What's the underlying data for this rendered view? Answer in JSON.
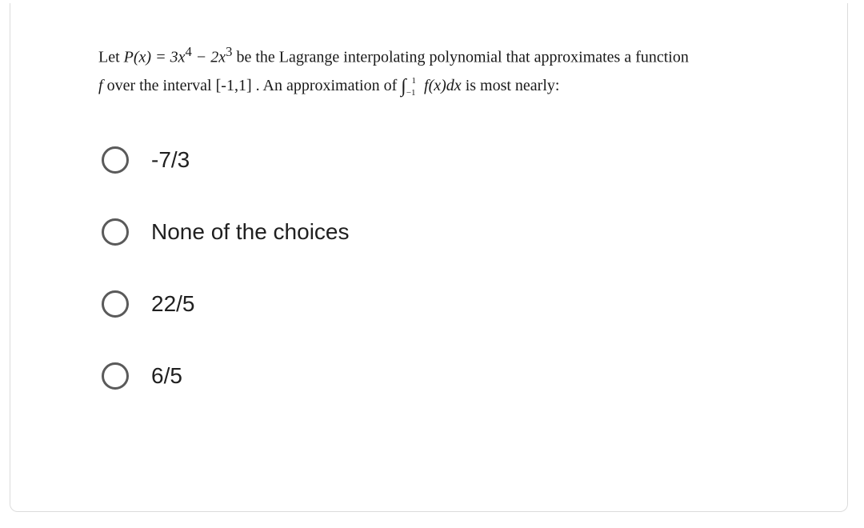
{
  "question": {
    "prefix": "Let ",
    "poly_lhs": "P(x) = 3x",
    "exp4": "4",
    "minus": " − 2x",
    "exp3": "3",
    "mid1": " be the Lagrange interpolating polynomial that approximates a function ",
    "fvar": "f",
    "mid2": " over the interval [-1,1] . An approximation of ",
    "integral_sym": "∫",
    "int_lower": "−1",
    "int_upper": "1",
    "integrand": " f(x)dx",
    "tail": " is most nearly:"
  },
  "options": [
    {
      "label": "-7/3"
    },
    {
      "label": "None of the choices"
    },
    {
      "label": "22/5"
    },
    {
      "label": "6/5"
    }
  ],
  "style": {
    "card_border_color": "#dcdcdc",
    "radio_border_color": "#5a5a5a",
    "option_fontsize": 28,
    "stem_fontsize": 20,
    "text_color": "#202020"
  }
}
